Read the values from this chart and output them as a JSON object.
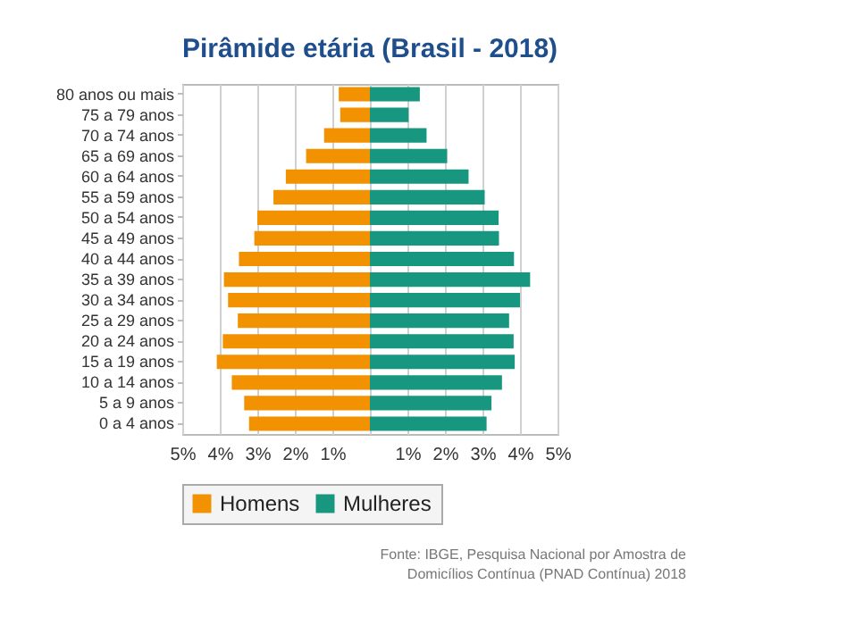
{
  "chart_data": {
    "type": "bar",
    "orientation": "horizontal",
    "title": "Pirâmide etária (Brasil - 2018)",
    "categories": [
      "80 anos ou mais",
      "75 a 79 anos",
      "70 a 74 anos",
      "65 a 69 anos",
      "60 a 64 anos",
      "55 a 59 anos",
      "50 a 54 anos",
      "45 a 49 anos",
      "40 a 44 anos",
      "35 a 39 anos",
      "30 a 34 anos",
      "25 a 29 anos",
      "20 a 24 anos",
      "15 a 19 anos",
      "10 a 14 anos",
      "5 a 9 anos",
      "0 a 4 anos"
    ],
    "series": [
      {
        "name": "Homens",
        "color": "#f39200",
        "values": [
          -0.83,
          -0.79,
          -1.22,
          -1.7,
          -2.24,
          -2.57,
          -3.0,
          -3.08,
          -3.49,
          -3.89,
          -3.78,
          -3.52,
          -3.92,
          -4.08,
          -3.68,
          -3.35,
          -3.22
        ]
      },
      {
        "name": "Mulheres",
        "color": "#17977f",
        "values": [
          1.33,
          1.03,
          1.51,
          2.06,
          2.63,
          3.06,
          3.43,
          3.44,
          3.84,
          4.27,
          4.0,
          3.71,
          3.83,
          3.86,
          3.52,
          3.24,
          3.11
        ]
      }
    ],
    "xlim": [
      -5,
      5
    ],
    "xticks": [
      {
        "value": -5,
        "label": "5%"
      },
      {
        "value": -4,
        "label": "4%"
      },
      {
        "value": -3,
        "label": "3%"
      },
      {
        "value": -2,
        "label": "2%"
      },
      {
        "value": -1,
        "label": "1%"
      },
      {
        "value": 0,
        "label": null
      },
      {
        "value": 1,
        "label": "1%"
      },
      {
        "value": 2,
        "label": "2%"
      },
      {
        "value": 3,
        "label": "3%"
      },
      {
        "value": 4,
        "label": "4%"
      },
      {
        "value": 5,
        "label": "5%"
      }
    ],
    "grid": "x",
    "legend": "bottom",
    "stacked": true,
    "annotations": [
      "Fonte: IBGE, Pesquisa Nacional por Amostra de Domicílios Contínua (PNAD Contínua) 2018"
    ]
  }
}
